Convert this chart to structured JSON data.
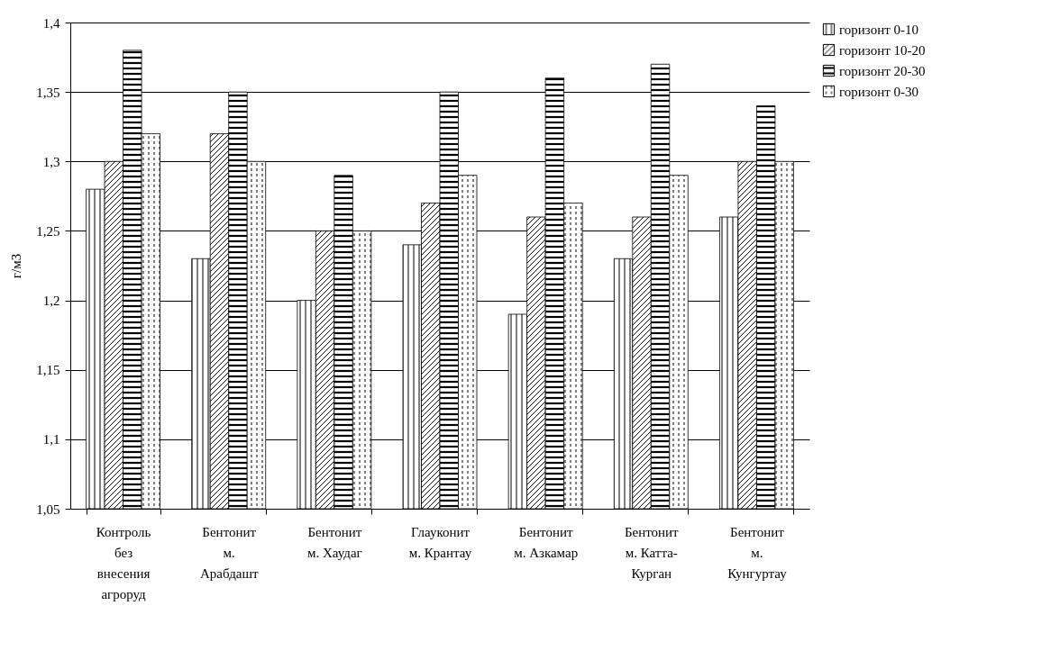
{
  "chart_data": {
    "type": "bar",
    "ylabel": "г/м3",
    "categories": [
      "Контроль\nбез\nвнесения\nагроруд",
      "Бентонит\nм.\nАрабдашт",
      "Бентонит\nм. Хаудаг",
      "Глауконит\nм. Крантау",
      "Бентонит\nм. Азкамар",
      "Бентонит\nм. Катта-\nКурган",
      "Бентонит\nм.\nКунгуртау"
    ],
    "series": [
      {
        "name": "горизонт 0-10",
        "color": "#000000",
        "values": [
          1.28,
          1.23,
          1.2,
          1.24,
          1.19,
          1.23,
          1.26
        ]
      },
      {
        "name": "горизонт 10-20",
        "color": "#000000",
        "values": [
          1.3,
          1.32,
          1.25,
          1.27,
          1.26,
          1.26,
          1.3
        ]
      },
      {
        "name": "горизонт 20-30",
        "color": "#000000",
        "values": [
          1.38,
          1.35,
          1.29,
          1.35,
          1.36,
          1.37,
          1.34
        ]
      },
      {
        "name": "горизонт 0-30",
        "color": "#000000",
        "values": [
          1.32,
          1.3,
          1.25,
          1.29,
          1.27,
          1.29,
          1.3
        ]
      }
    ],
    "ylim": [
      1.05,
      1.4
    ],
    "yticks": [
      {
        "value": 1.05,
        "label": "1,05"
      },
      {
        "value": 1.1,
        "label": "1,1"
      },
      {
        "value": 1.15,
        "label": "1,15"
      },
      {
        "value": 1.2,
        "label": "1,2"
      },
      {
        "value": 1.25,
        "label": "1,25"
      },
      {
        "value": 1.3,
        "label": "1,3"
      },
      {
        "value": 1.35,
        "label": "1,35"
      },
      {
        "value": 1.4,
        "label": "1,4"
      }
    ],
    "grid": "y",
    "legend": "right"
  }
}
